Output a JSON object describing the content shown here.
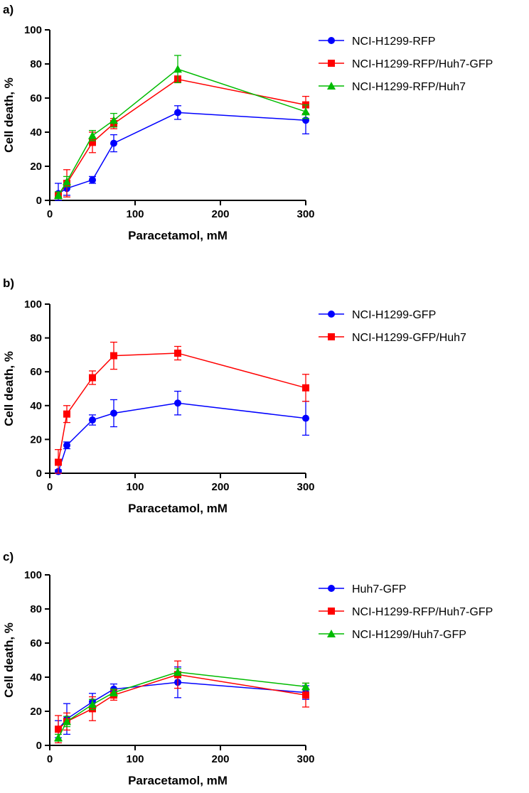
{
  "chart_data": [
    {
      "type": "line",
      "panel_label": "a)",
      "xlabel": "Paracetamol, mM",
      "ylabel": "Cell death, %",
      "xlim": [
        0,
        300
      ],
      "ylim": [
        0,
        100
      ],
      "x_ticks": [
        0,
        100,
        200,
        300
      ],
      "y_ticks": [
        0,
        20,
        40,
        60,
        80,
        100
      ],
      "x_tick_labels": [
        "0",
        "100",
        "200",
        "300"
      ],
      "y_tick_labels": [
        "0",
        "20",
        "40",
        "60",
        "80",
        "100"
      ],
      "legend_position": "right",
      "grid": false,
      "x": [
        10,
        20,
        50,
        75,
        150,
        300
      ],
      "series": [
        {
          "name": "NCI-H1299-RFP",
          "color": "#0000ff",
          "marker": "circle",
          "values": [
            4,
            7,
            12,
            33.5,
            51.5,
            47
          ],
          "errors": [
            6,
            4,
            2,
            5,
            4,
            8
          ]
        },
        {
          "name": "NCI-H1299-RFP/Huh7-GFP",
          "color": "#ff0000",
          "marker": "square",
          "values": [
            3,
            10,
            34,
            45,
            71,
            56
          ],
          "errors": [
            2,
            8,
            6,
            3,
            2,
            5
          ]
        },
        {
          "name": "NCI-H1299-RFP/Huh7",
          "color": "#00bb00",
          "marker": "triangle",
          "values": [
            3,
            11,
            38,
            47,
            77,
            52
          ],
          "errors": [
            2,
            3,
            3,
            4,
            8,
            4
          ]
        }
      ]
    },
    {
      "type": "line",
      "panel_label": "b)",
      "xlabel": "Paracetamol, mM",
      "ylabel": "Cell death, %",
      "xlim": [
        0,
        300
      ],
      "ylim": [
        0,
        100
      ],
      "x_ticks": [
        0,
        100,
        200,
        300
      ],
      "y_ticks": [
        0,
        20,
        40,
        60,
        80,
        100
      ],
      "x_tick_labels": [
        "0",
        "100",
        "200",
        "300"
      ],
      "y_tick_labels": [
        "0",
        "20",
        "40",
        "60",
        "80",
        "100"
      ],
      "legend_position": "right",
      "grid": false,
      "x": [
        10,
        20,
        50,
        75,
        150,
        300
      ],
      "series": [
        {
          "name": "NCI-H1299-GFP",
          "color": "#0000ff",
          "marker": "circle",
          "values": [
            1,
            16.5,
            31.5,
            35.5,
            41.5,
            32.5
          ],
          "errors": [
            1,
            2,
            3,
            8,
            7,
            10
          ]
        },
        {
          "name": "NCI-H1299-GFP/Huh7",
          "color": "#ff0000",
          "marker": "square",
          "values": [
            6.5,
            35,
            56.5,
            69.5,
            71,
            50.5
          ],
          "errors": [
            7.5,
            5,
            4,
            8,
            4,
            8
          ]
        }
      ]
    },
    {
      "type": "line",
      "panel_label": "c)",
      "xlabel": "Paracetamol, mM",
      "ylabel": "Cell death, %",
      "xlim": [
        0,
        300
      ],
      "ylim": [
        0,
        100
      ],
      "x_ticks": [
        0,
        100,
        200,
        300
      ],
      "y_ticks": [
        0,
        20,
        40,
        60,
        80,
        100
      ],
      "x_tick_labels": [
        "0",
        "100",
        "200",
        "300"
      ],
      "y_tick_labels": [
        "0",
        "20",
        "40",
        "60",
        "80",
        "100"
      ],
      "legend_position": "right",
      "grid": false,
      "x": [
        10,
        20,
        50,
        75,
        150,
        300
      ],
      "series": [
        {
          "name": "Huh7-GFP",
          "color": "#0000ff",
          "marker": "circle",
          "values": [
            9.5,
            15.5,
            25.5,
            33,
            37,
            31
          ],
          "errors": [
            5,
            9,
            5,
            3,
            9,
            4
          ]
        },
        {
          "name": "NCI-H1299-RFP/Huh7-GFP",
          "color": "#ff0000",
          "marker": "square",
          "values": [
            9.5,
            14,
            21.5,
            29.5,
            41.5,
            29.5
          ],
          "errors": [
            8,
            5,
            7,
            3,
            8,
            7
          ]
        },
        {
          "name": "NCI-H1299/Huh7-GFP",
          "color": "#00bb00",
          "marker": "triangle",
          "values": [
            4.5,
            14,
            24,
            31,
            43,
            34.5
          ],
          "errors": [
            2,
            3,
            3,
            2,
            2,
            2
          ]
        }
      ]
    }
  ]
}
